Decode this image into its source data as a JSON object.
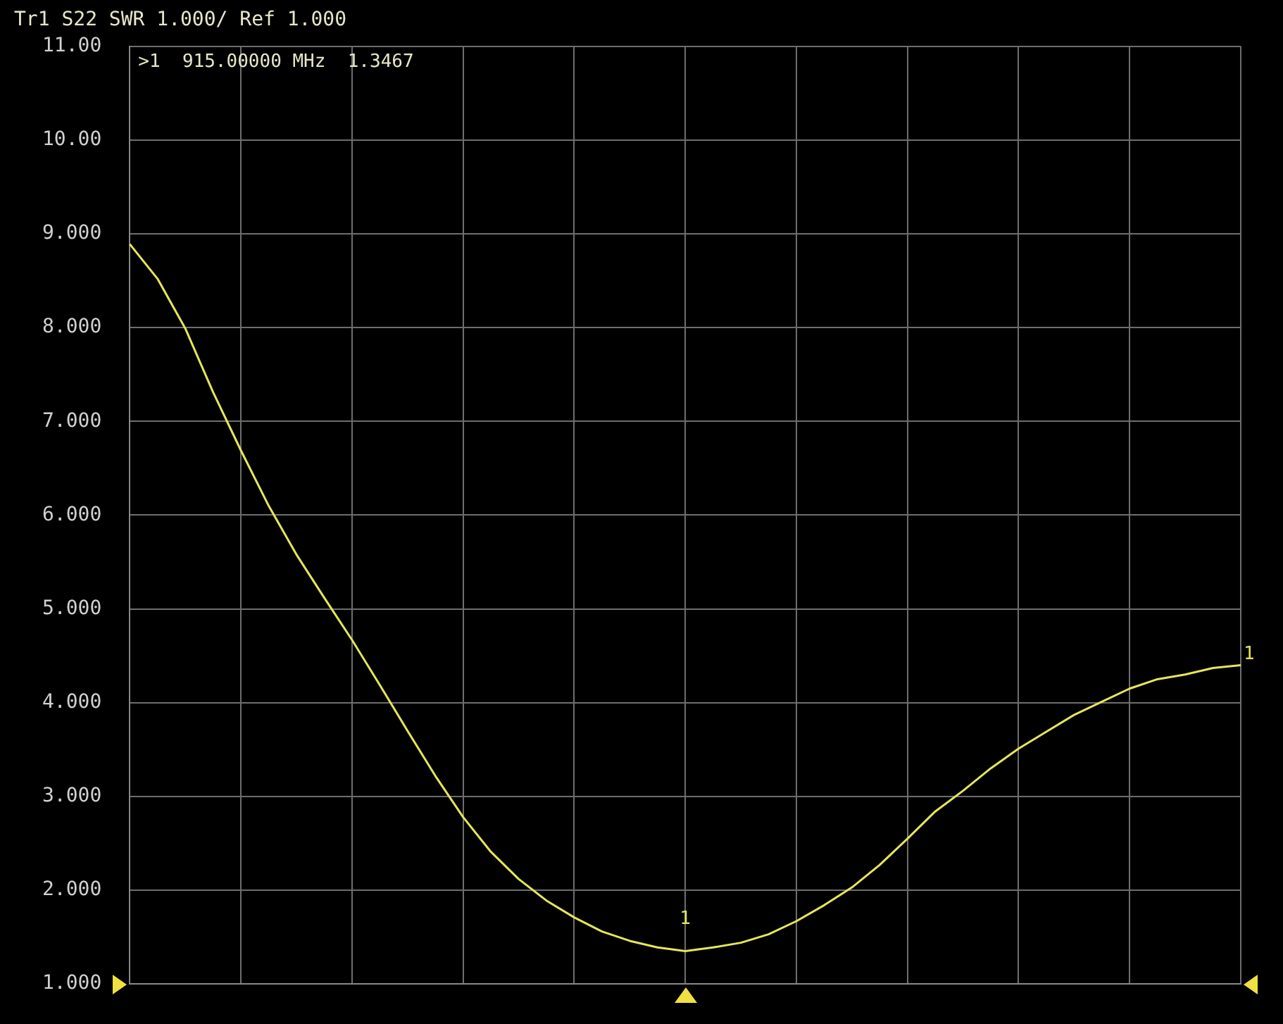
{
  "chart_data": {
    "type": "line",
    "title": "Tr1 S22 SWR 1.000/ Ref 1.000",
    "categories": [
      null,
      null,
      null,
      null,
      null,
      null,
      null,
      null,
      null,
      null,
      null,
      null,
      null,
      null,
      null,
      null,
      null,
      null,
      null,
      null,
      null,
      null,
      null,
      null,
      null,
      null,
      null,
      null,
      null,
      null,
      null,
      null,
      null,
      null,
      null,
      null,
      null,
      null,
      null,
      null,
      null
    ],
    "series": [
      {
        "color": "#e6e65a",
        "values": [
          8.89,
          8.52,
          7.99,
          7.31,
          6.69,
          6.1,
          5.58,
          5.12,
          4.67,
          4.19,
          3.7,
          3.22,
          2.78,
          2.41,
          2.12,
          1.89,
          1.71,
          1.56,
          1.46,
          1.39,
          1.35,
          1.39,
          1.44,
          1.53,
          1.67,
          1.84,
          2.03,
          2.27,
          2.55,
          2.84,
          3.06,
          3.3,
          3.51,
          3.69,
          3.87,
          4.01,
          4.15,
          4.25,
          4.3,
          4.37,
          4.4
        ]
      }
    ],
    "ylim": [
      1,
      11
    ],
    "yticks": [
      {
        "value": 1,
        "label": "1.000"
      },
      {
        "value": 2,
        "label": "2.000"
      },
      {
        "value": 3,
        "label": "3.000"
      },
      {
        "value": 4,
        "label": "4.000"
      },
      {
        "value": 5,
        "label": "5.000"
      },
      {
        "value": 6,
        "label": "6.000"
      },
      {
        "value": 7,
        "label": "7.000"
      },
      {
        "value": 8,
        "label": "8.000"
      },
      {
        "value": 9,
        "label": "9.000"
      },
      {
        "value": 10,
        "label": "10.00"
      },
      {
        "value": 11,
        "label": "11.00"
      }
    ],
    "annotations": [
      ">1  915.00000 MHz  1.3467",
      {
        "text": "1",
        "y": 1.35
      },
      "1"
    ],
    "grid": true,
    "legend": false,
    "marker": "none",
    "line_style": "solid",
    "tick_labels": "y"
  }
}
